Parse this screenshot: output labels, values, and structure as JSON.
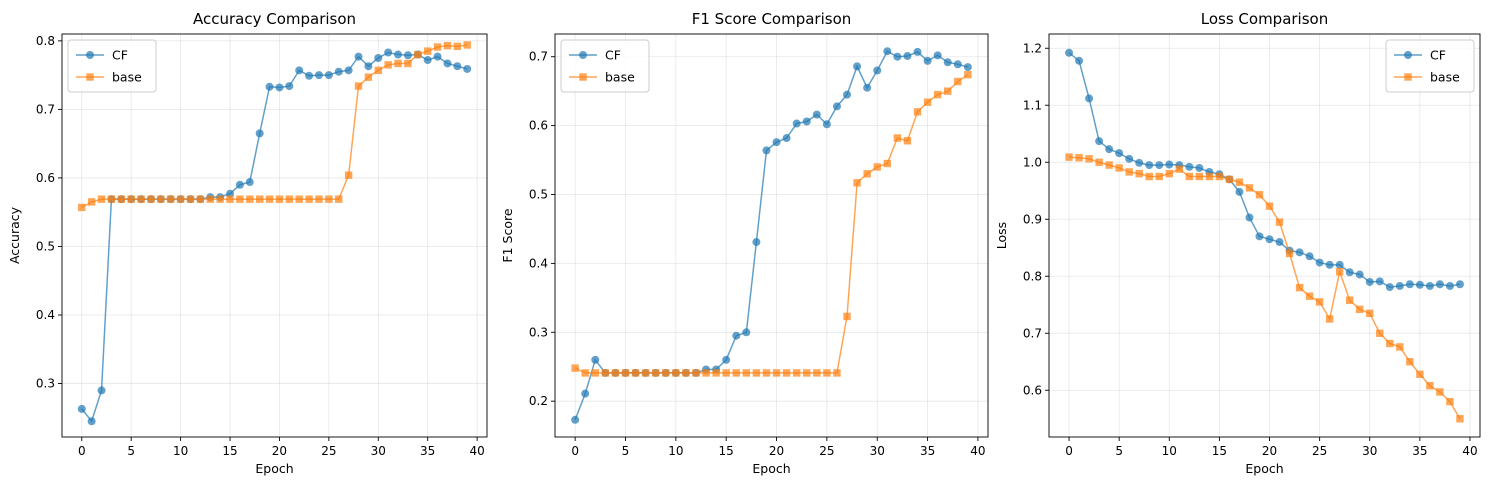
{
  "colors": {
    "CF": "#1f77b4",
    "base": "#ff7f0e"
  },
  "chart_data": [
    {
      "type": "line",
      "title": "Accuracy Comparison",
      "xlabel": "Epoch",
      "ylabel": "Accuracy",
      "xlim": [
        -2,
        41
      ],
      "ylim": [
        0.222,
        0.81
      ],
      "xticks": [
        0,
        5,
        10,
        15,
        20,
        25,
        30,
        35,
        40
      ],
      "yticks": [
        0.3,
        0.4,
        0.5,
        0.6,
        0.7,
        0.8
      ],
      "legend": "top-left",
      "grid": true,
      "series": [
        {
          "name": "CF",
          "marker": "circle",
          "values": [
            0.263,
            0.245,
            0.29,
            0.569,
            0.569,
            0.569,
            0.569,
            0.569,
            0.569,
            0.569,
            0.569,
            0.569,
            0.569,
            0.572,
            0.572,
            0.577,
            0.59,
            0.594,
            0.665,
            0.733,
            0.732,
            0.734,
            0.757,
            0.749,
            0.75,
            0.75,
            0.755,
            0.757,
            0.777,
            0.763,
            0.775,
            0.783,
            0.78,
            0.779,
            0.78,
            0.772,
            0.777,
            0.767,
            0.763,
            0.759
          ]
        },
        {
          "name": "base",
          "marker": "square",
          "values": [
            0.557,
            0.565,
            0.569,
            0.569,
            0.569,
            0.569,
            0.569,
            0.569,
            0.569,
            0.569,
            0.569,
            0.569,
            0.569,
            0.569,
            0.569,
            0.569,
            0.569,
            0.569,
            0.569,
            0.569,
            0.569,
            0.569,
            0.569,
            0.569,
            0.569,
            0.569,
            0.569,
            0.604,
            0.734,
            0.747,
            0.757,
            0.765,
            0.767,
            0.767,
            0.78,
            0.785,
            0.791,
            0.793,
            0.792,
            0.794
          ]
        }
      ]
    },
    {
      "type": "line",
      "title": "F1 Score Comparison",
      "xlabel": "Epoch",
      "ylabel": "F1 Score",
      "xlim": [
        -2,
        41
      ],
      "ylim": [
        0.148,
        0.733
      ],
      "xticks": [
        0,
        5,
        10,
        15,
        20,
        25,
        30,
        35,
        40
      ],
      "yticks": [
        0.2,
        0.3,
        0.4,
        0.5,
        0.6,
        0.7
      ],
      "legend": "top-left",
      "grid": true,
      "series": [
        {
          "name": "CF",
          "marker": "circle",
          "values": [
            0.173,
            0.211,
            0.26,
            0.241,
            0.241,
            0.241,
            0.241,
            0.241,
            0.241,
            0.241,
            0.241,
            0.241,
            0.241,
            0.246,
            0.246,
            0.26,
            0.295,
            0.3,
            0.431,
            0.564,
            0.576,
            0.582,
            0.603,
            0.606,
            0.616,
            0.602,
            0.628,
            0.645,
            0.686,
            0.655,
            0.68,
            0.708,
            0.7,
            0.701,
            0.707,
            0.694,
            0.702,
            0.692,
            0.689,
            0.685
          ]
        },
        {
          "name": "base",
          "marker": "square",
          "values": [
            0.248,
            0.241,
            0.241,
            0.241,
            0.241,
            0.241,
            0.241,
            0.241,
            0.241,
            0.241,
            0.241,
            0.241,
            0.241,
            0.241,
            0.241,
            0.241,
            0.241,
            0.241,
            0.241,
            0.241,
            0.241,
            0.241,
            0.241,
            0.241,
            0.241,
            0.241,
            0.241,
            0.323,
            0.517,
            0.53,
            0.54,
            0.545,
            0.582,
            0.578,
            0.62,
            0.634,
            0.645,
            0.65,
            0.664,
            0.674
          ]
        }
      ]
    },
    {
      "type": "line",
      "title": "Loss Comparison",
      "xlabel": "Epoch",
      "ylabel": "Loss",
      "xlim": [
        -2,
        41
      ],
      "ylim": [
        0.518,
        1.225
      ],
      "xticks": [
        0,
        5,
        10,
        15,
        20,
        25,
        30,
        35,
        40
      ],
      "yticks": [
        0.6,
        0.7,
        0.8,
        0.9,
        1.0,
        1.1,
        1.2
      ],
      "legend": "top-right",
      "grid": true,
      "series": [
        {
          "name": "CF",
          "marker": "circle",
          "values": [
            1.192,
            1.178,
            1.112,
            1.037,
            1.023,
            1.016,
            1.006,
            0.999,
            0.995,
            0.995,
            0.996,
            0.995,
            0.992,
            0.99,
            0.983,
            0.979,
            0.97,
            0.948,
            0.903,
            0.87,
            0.865,
            0.86,
            0.845,
            0.842,
            0.835,
            0.824,
            0.82,
            0.82,
            0.807,
            0.803,
            0.79,
            0.791,
            0.781,
            0.783,
            0.786,
            0.785,
            0.783,
            0.786,
            0.783,
            0.786
          ]
        },
        {
          "name": "base",
          "marker": "square",
          "values": [
            1.009,
            1.008,
            1.006,
            1.0,
            0.995,
            0.99,
            0.983,
            0.98,
            0.975,
            0.975,
            0.98,
            0.988,
            0.975,
            0.975,
            0.975,
            0.975,
            0.97,
            0.965,
            0.955,
            0.943,
            0.923,
            0.895,
            0.84,
            0.78,
            0.765,
            0.755,
            0.725,
            0.808,
            0.758,
            0.742,
            0.735,
            0.7,
            0.682,
            0.676,
            0.65,
            0.628,
            0.608,
            0.597,
            0.58,
            0.55
          ]
        }
      ]
    }
  ]
}
